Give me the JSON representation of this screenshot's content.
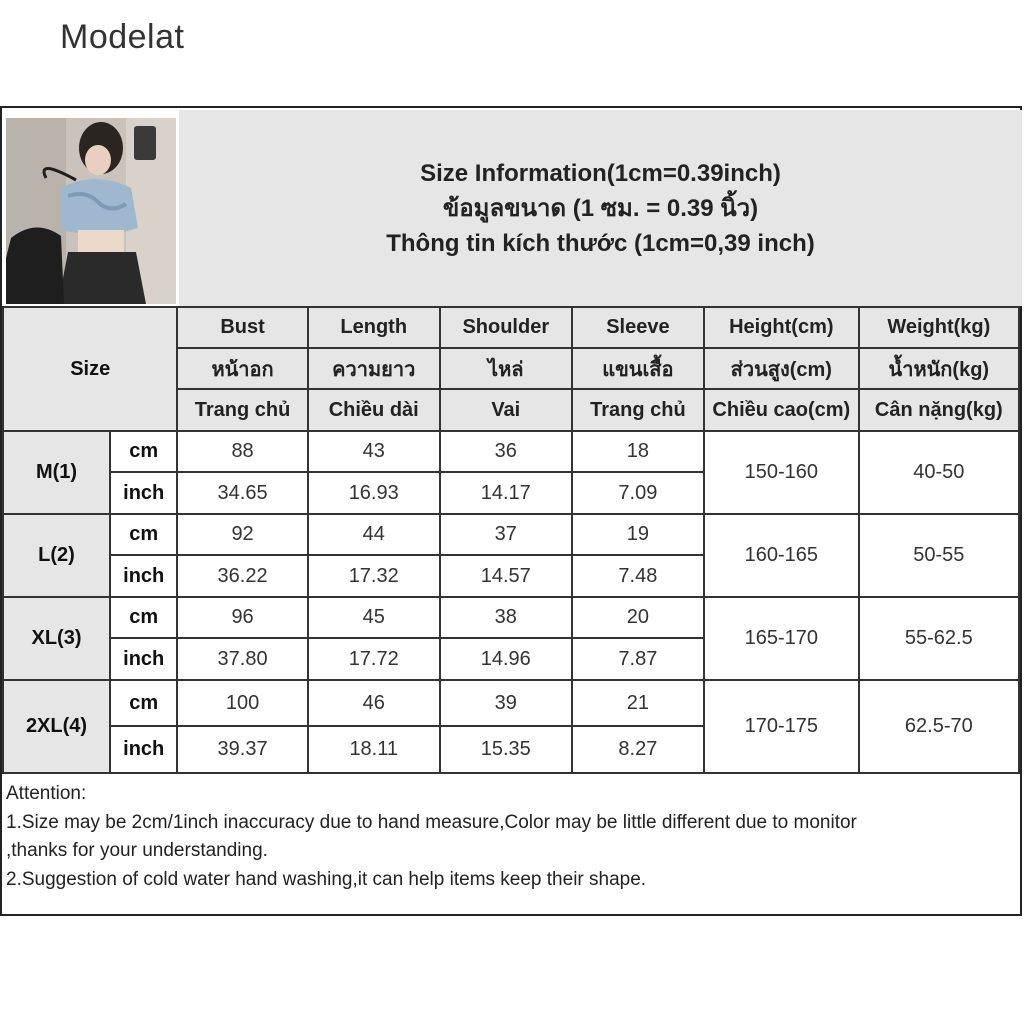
{
  "brand": "Modelat",
  "info": {
    "line_en": "Size Information(1cm=0.39inch)",
    "line_th": "ข้อมูลขนาด (1 ซม. = 0.39 นิ้ว)",
    "line_vi": "Thông tin kích thước (1cm=0,39 inch)"
  },
  "header": {
    "size_label": "Size",
    "columns": [
      {
        "en": "Bust",
        "th": "หน้าอก",
        "vi": "Trang chủ"
      },
      {
        "en": "Length",
        "th": "ความยาว",
        "vi": "Chiều dài"
      },
      {
        "en": "Shoulder",
        "th": "ไหล่",
        "vi": "Vai"
      },
      {
        "en": "Sleeve",
        "th": "แขนเสื้อ",
        "vi": "Trang chủ"
      },
      {
        "en": "Height(cm)",
        "th": "ส่วนสูง(cm)",
        "vi": "Chiều cao(cm)"
      },
      {
        "en": "Weight(kg)",
        "th": "น้ำหนัก(kg)",
        "vi": "Cân nặng(kg)"
      }
    ]
  },
  "units": {
    "cm": "cm",
    "inch": "inch"
  },
  "rows": [
    {
      "size": "M(1)",
      "cm": [
        "88",
        "43",
        "36",
        "18"
      ],
      "inch": [
        "34.65",
        "16.93",
        "14.17",
        "7.09"
      ],
      "height": "150-160",
      "weight": "40-50"
    },
    {
      "size": "L(2)",
      "cm": [
        "92",
        "44",
        "37",
        "19"
      ],
      "inch": [
        "36.22",
        "17.32",
        "14.57",
        "7.48"
      ],
      "height": "160-165",
      "weight": "50-55"
    },
    {
      "size": "XL(3)",
      "cm": [
        "96",
        "45",
        "38",
        "20"
      ],
      "inch": [
        "37.80",
        "17.72",
        "14.96",
        "7.87"
      ],
      "height": "165-170",
      "weight": "55-62.5"
    },
    {
      "size": "2XL(4)",
      "cm": [
        "100",
        "46",
        "39",
        "21"
      ],
      "inch": [
        "39.37",
        "18.11",
        "15.35",
        "8.27"
      ],
      "height": "170-175",
      "weight": "62.5-70"
    }
  ],
  "notes": {
    "title": "Attention:",
    "line1": "1.Size may be 2cm/1inch inaccuracy due to hand measure,Color may be little different due to monitor",
    "line2": ",thanks for your understanding.",
    "line3": "2.Suggestion of cold water hand washing,it can help items keep their shape."
  }
}
